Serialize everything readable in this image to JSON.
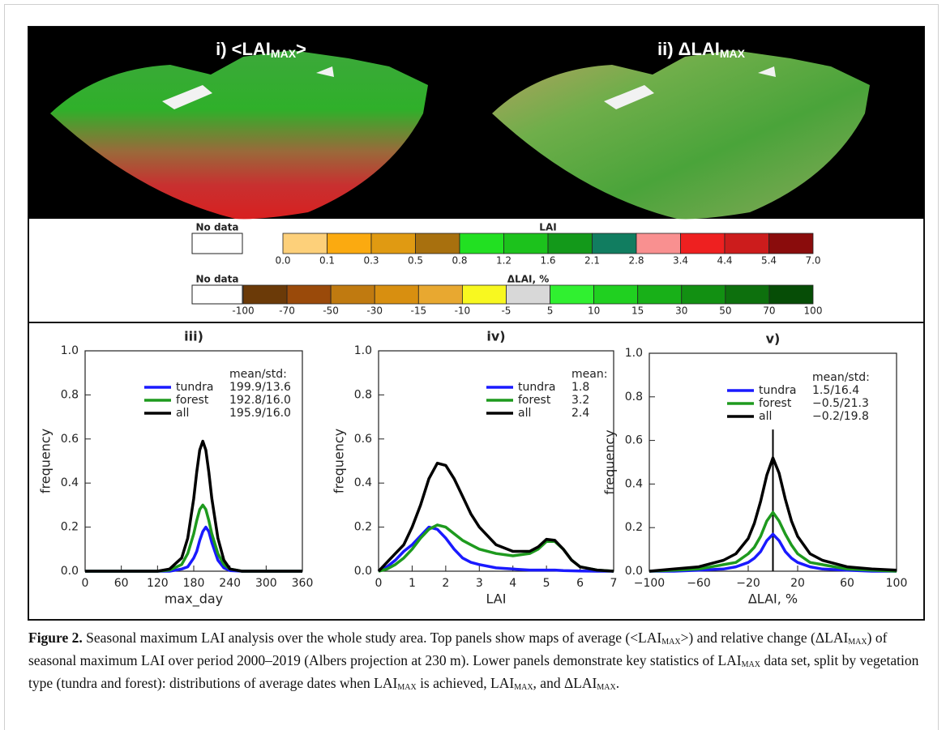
{
  "maps": [
    {
      "title": {
        "text": "i) <LAI",
        "sub": "MAX",
        "end": ">"
      }
    },
    {
      "title": {
        "text": "ii) ΔLAI",
        "sub": "MAX"
      }
    }
  ],
  "colorbars": [
    {
      "title": "LAI",
      "no_data": "No data",
      "colors": [
        "#fdd07a",
        "#fbaa10",
        "#e09a12",
        "#a8700e",
        "#22e022",
        "#1cc21c",
        "#13991a",
        "#117d60",
        "#f99090",
        "#ee2020",
        "#cc1c1c",
        "#8a0c0c"
      ],
      "tick_labels": [
        "0.0",
        "0.1",
        "0.3",
        "0.5",
        "0.8",
        "1.2",
        "1.6",
        "2.1",
        "2.8",
        "3.4",
        "4.4",
        "5.4",
        "7.0"
      ]
    },
    {
      "title": "ΔLAI, %",
      "no_data": "No data",
      "colors": [
        "#6b3a08",
        "#9a4a0a",
        "#c07a10",
        "#d88f10",
        "#e8a830",
        "#f8f820",
        "#d8d8d8",
        "#30f030",
        "#20d020",
        "#18b018",
        "#129012",
        "#0d700d",
        "#064d06"
      ],
      "tick_labels": [
        "-100",
        "-70",
        "-50",
        "-30",
        "-15",
        "-10",
        "-5",
        "5",
        "10",
        "15",
        "30",
        "50",
        "70",
        "100"
      ]
    }
  ],
  "chart_data": [
    {
      "type": "line",
      "title": "iii)",
      "xlabel": "max_day",
      "ylabel": "frequency",
      "legend_title": "mean/std:",
      "x": [
        0,
        120,
        140,
        160,
        170,
        180,
        185,
        190,
        195,
        200,
        205,
        210,
        220,
        230,
        240,
        260,
        360
      ],
      "series": [
        {
          "name": "tundra",
          "color": "#1a1aff",
          "stat": "199.9/13.6",
          "values": [
            0,
            0,
            0,
            0.01,
            0.02,
            0.06,
            0.09,
            0.14,
            0.18,
            0.2,
            0.18,
            0.13,
            0.05,
            0.015,
            0.003,
            0,
            0
          ]
        },
        {
          "name": "forest",
          "color": "#1e9a1e",
          "stat": "192.8/16.0",
          "values": [
            0,
            0,
            0.005,
            0.03,
            0.08,
            0.17,
            0.23,
            0.28,
            0.3,
            0.28,
            0.23,
            0.17,
            0.08,
            0.03,
            0.01,
            0,
            0
          ]
        },
        {
          "name": "all",
          "color": "#000000",
          "stat": "195.9/16.0",
          "values": [
            0,
            0,
            0.01,
            0.06,
            0.15,
            0.33,
            0.45,
            0.55,
            0.59,
            0.55,
            0.45,
            0.33,
            0.15,
            0.05,
            0.01,
            0,
            0
          ]
        }
      ],
      "xlim": [
        0,
        360
      ],
      "xticks": [
        0,
        60,
        120,
        180,
        240,
        300,
        360
      ],
      "ylim": [
        0,
        1
      ],
      "yticks": [
        {
          "value": 0,
          "label": "0.0"
        },
        {
          "value": 0.2,
          "label": "0.2"
        },
        {
          "value": 0.4,
          "label": "0.4"
        },
        {
          "value": 0.6,
          "label": "0.6"
        },
        {
          "value": 0.8,
          "label": "0.8"
        },
        {
          "value": 1,
          "label": "1.0"
        }
      ]
    },
    {
      "type": "line",
      "title": "iv)",
      "xlabel": "LAI",
      "ylabel": "frequency",
      "legend_title": "mean:",
      "x": [
        0,
        0.25,
        0.5,
        0.75,
        1,
        1.25,
        1.5,
        1.75,
        2,
        2.25,
        2.5,
        2.75,
        3,
        3.5,
        4,
        4.5,
        4.75,
        5,
        5.25,
        5.5,
        5.75,
        6,
        6.5,
        7
      ],
      "series": [
        {
          "name": "tundra",
          "color": "#1a1aff",
          "stat": "1.8",
          "values": [
            0,
            0.02,
            0.05,
            0.09,
            0.12,
            0.16,
            0.2,
            0.19,
            0.15,
            0.1,
            0.06,
            0.04,
            0.03,
            0.015,
            0.01,
            0.005,
            0.005,
            0.005,
            0.005,
            0.003,
            0.002,
            0.001,
            0,
            0
          ]
        },
        {
          "name": "forest",
          "color": "#1e9a1e",
          "stat": "3.2",
          "values": [
            0,
            0.01,
            0.03,
            0.06,
            0.1,
            0.15,
            0.19,
            0.21,
            0.2,
            0.17,
            0.14,
            0.12,
            0.1,
            0.08,
            0.07,
            0.08,
            0.1,
            0.135,
            0.135,
            0.1,
            0.05,
            0.02,
            0.005,
            0
          ]
        },
        {
          "name": "all",
          "color": "#000000",
          "stat": "2.4",
          "values": [
            0,
            0.04,
            0.08,
            0.12,
            0.2,
            0.3,
            0.42,
            0.49,
            0.48,
            0.42,
            0.34,
            0.26,
            0.2,
            0.12,
            0.09,
            0.09,
            0.11,
            0.145,
            0.14,
            0.1,
            0.05,
            0.02,
            0.005,
            0
          ]
        }
      ],
      "xlim": [
        0,
        7
      ],
      "xticks": [
        0,
        1,
        2,
        3,
        4,
        5,
        6,
        7
      ],
      "ylim": [
        0,
        1
      ],
      "yticks": [
        {
          "value": 0,
          "label": "0.0"
        },
        {
          "value": 0.2,
          "label": "0.2"
        },
        {
          "value": 0.4,
          "label": "0.4"
        },
        {
          "value": 0.6,
          "label": "0.6"
        },
        {
          "value": 0.8,
          "label": "0.8"
        },
        {
          "value": 1,
          "label": "1.0"
        }
      ]
    },
    {
      "type": "line",
      "title": "v)",
      "xlabel": "ΔLAI, %",
      "ylabel": "frequency",
      "legend_title": "mean/std:",
      "x": [
        -100,
        -80,
        -60,
        -40,
        -30,
        -20,
        -15,
        -10,
        -5,
        0,
        5,
        10,
        15,
        20,
        30,
        40,
        60,
        80,
        100
      ],
      "series": [
        {
          "name": "tundra",
          "color": "#1a1aff",
          "stat": "1.5/16.4",
          "values": [
            0,
            0,
            0.005,
            0.01,
            0.02,
            0.04,
            0.06,
            0.09,
            0.14,
            0.17,
            0.14,
            0.09,
            0.06,
            0.04,
            0.02,
            0.01,
            0.005,
            0,
            0
          ]
        },
        {
          "name": "forest",
          "color": "#1e9a1e",
          "stat": "−0.5/21.3",
          "values": [
            0,
            0.005,
            0.01,
            0.03,
            0.04,
            0.08,
            0.11,
            0.16,
            0.23,
            0.27,
            0.23,
            0.17,
            0.12,
            0.08,
            0.04,
            0.03,
            0.01,
            0.005,
            0
          ]
        },
        {
          "name": "all",
          "color": "#000000",
          "stat": "−0.2/19.8",
          "values": [
            0,
            0.01,
            0.02,
            0.05,
            0.08,
            0.15,
            0.22,
            0.32,
            0.44,
            0.52,
            0.45,
            0.33,
            0.23,
            0.16,
            0.08,
            0.05,
            0.02,
            0.01,
            0.005
          ]
        }
      ],
      "reference_line": {
        "x": 0,
        "y_top": 0.65
      },
      "xlim": [
        -100,
        100
      ],
      "xticks": [
        {
          "value": -100,
          "label": "−100"
        },
        {
          "value": -60,
          "label": "−60"
        },
        {
          "value": -20,
          "label": "−20"
        },
        20,
        60,
        100
      ],
      "ylim": [
        0,
        1
      ],
      "yticks": [
        {
          "value": 0,
          "label": "0.0"
        },
        {
          "value": 0.2,
          "label": "0.2"
        },
        {
          "value": 0.4,
          "label": "0.4"
        },
        {
          "value": 0.6,
          "label": "0.6"
        },
        {
          "value": 0.8,
          "label": "0.8"
        },
        {
          "value": 1,
          "label": "1.0"
        }
      ]
    }
  ],
  "caption": {
    "label": "Figure 2.",
    "runs": [
      {
        "text": " Seasonal maximum LAI analysis over the whole study area. Top panels show maps of average (<LAI"
      },
      {
        "text": "MAX",
        "style": "sub"
      },
      {
        "text": ">) and relative change (ΔLAI"
      },
      {
        "text": "MAX",
        "style": "sub"
      },
      {
        "text": ") of seasonal maximum LAI over period 2000–2019 (Albers projection at 230 m). Lower panels demonstrate key statistics of LAI"
      },
      {
        "text": "MAX",
        "style": "sub"
      },
      {
        "text": " data set, split by vegetation type (tundra and forest): distributions of average dates when LAI"
      },
      {
        "text": "MAX",
        "style": "sub"
      },
      {
        "text": " is achieved, LAI"
      },
      {
        "text": "MAX",
        "style": "sub"
      },
      {
        "text": ", and ΔLAI"
      },
      {
        "text": "MAX",
        "style": "sub"
      },
      {
        "text": "."
      }
    ]
  }
}
